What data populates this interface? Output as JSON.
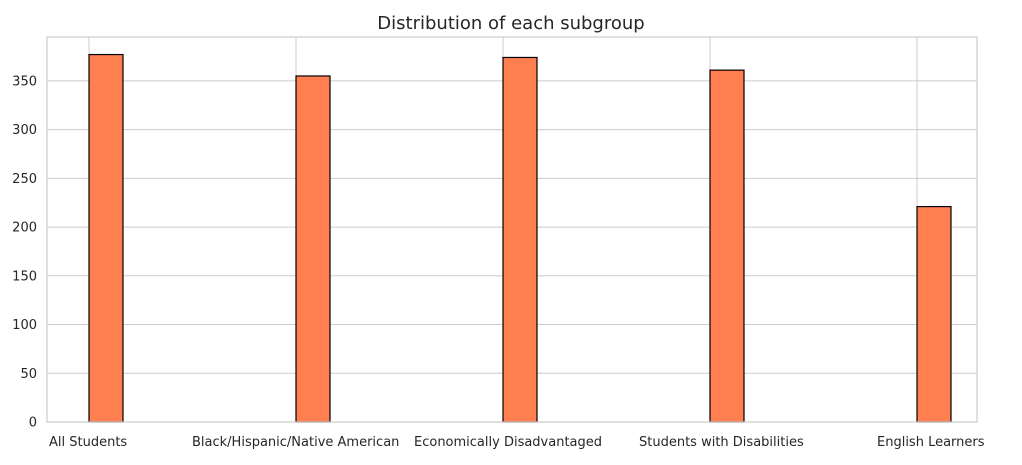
{
  "chart_data": {
    "type": "bar",
    "title": "Distribution of each subgroup",
    "xlabel": "",
    "ylabel": "",
    "categories": [
      "All Students",
      "Black/Hispanic/Native American",
      "Economically Disadvantaged",
      "Students with Disabilities",
      "English Learners"
    ],
    "values": [
      377,
      355,
      374,
      361,
      221
    ],
    "ylim": [
      0,
      395
    ],
    "yticks": [
      0,
      50,
      100,
      150,
      200,
      250,
      300,
      350
    ],
    "grid": true,
    "colors": {
      "bar_fill": "#ff7f50",
      "bar_edge": "#000000",
      "grid": "#cccccc",
      "text": "#262626"
    }
  }
}
